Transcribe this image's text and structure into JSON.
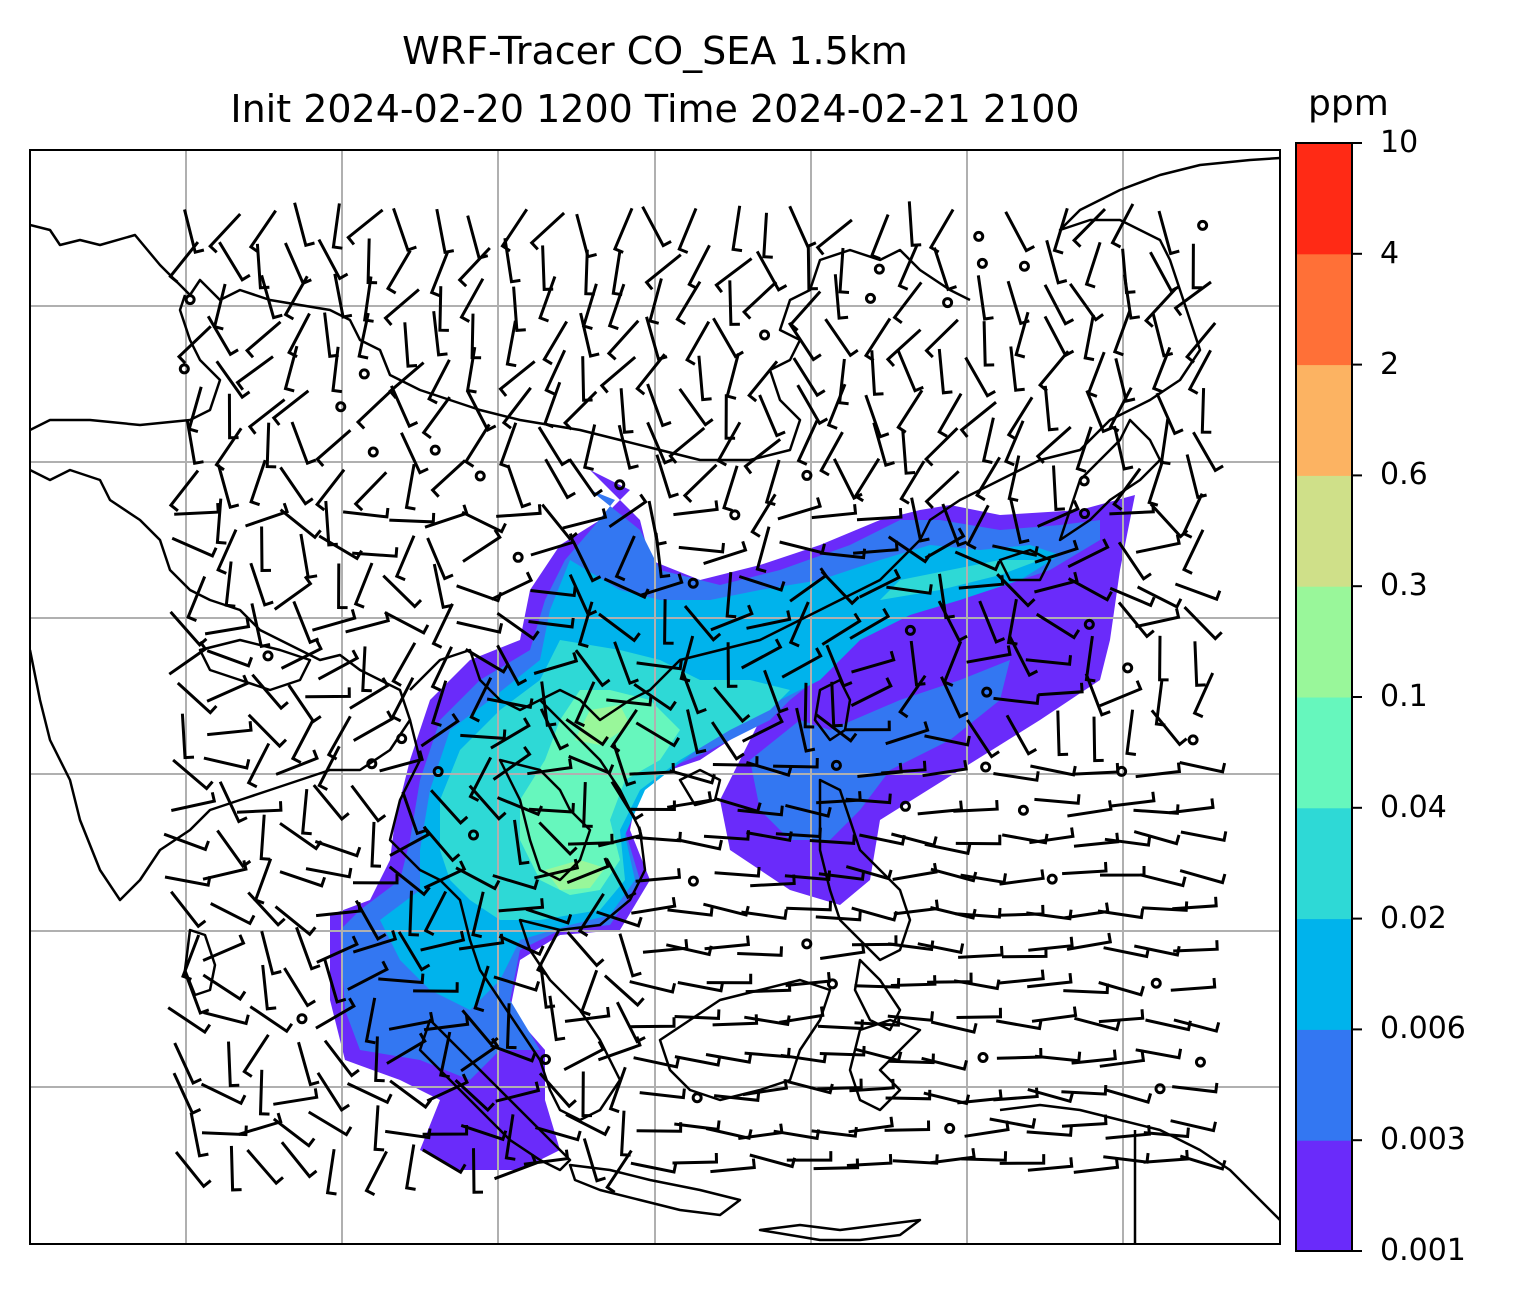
{
  "title": {
    "line1": "WRF-Tracer CO_SEA 1.5km",
    "line2": "Init 2024-02-20 1200 Time 2024-02-21 2100"
  },
  "colorbar": {
    "unit": "ppm",
    "levels": [
      "0.001",
      "0.003",
      "0.006",
      "0.02",
      "0.04",
      "0.1",
      "0.3",
      "0.6",
      "2",
      "4",
      "10"
    ],
    "colors": [
      "#6a2bfa",
      "#3377f2",
      "#00b3ec",
      "#2ed9d6",
      "#66f7bd",
      "#99f79a",
      "#cfe089",
      "#fcb362",
      "#ff7037",
      "#ff2a15"
    ]
  },
  "map": {
    "layers": [
      "CO tracer concentration (filled)",
      "coastlines",
      "lat/lon gridlines",
      "wind barbs"
    ],
    "wind_barbs": "station-model barbs at 1.5km"
  }
}
